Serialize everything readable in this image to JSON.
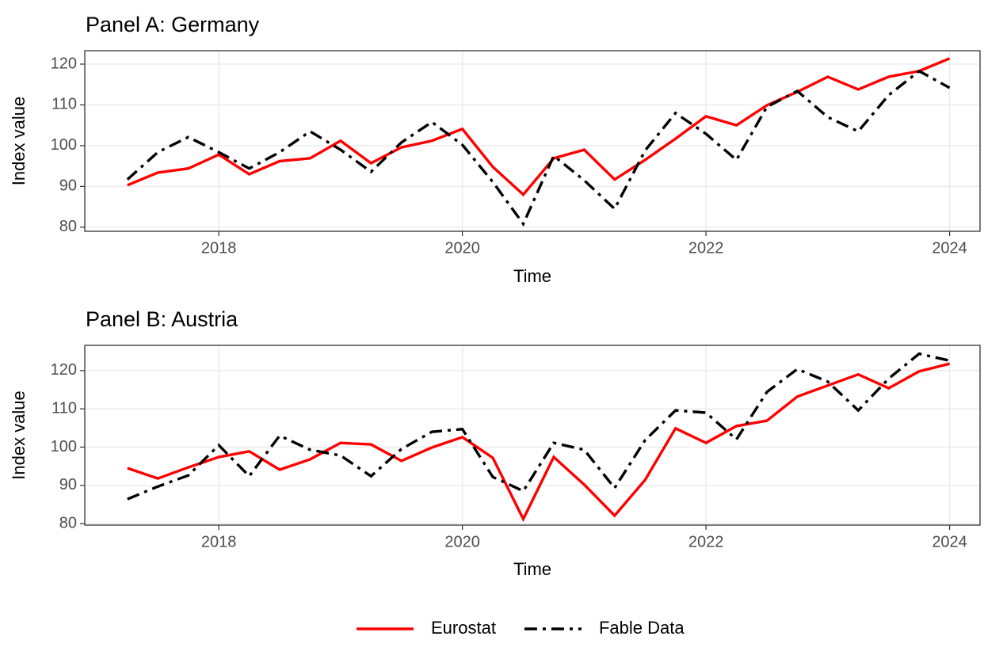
{
  "chart_data": [
    {
      "type": "line",
      "title": "Panel A: Germany",
      "x_label": "Time",
      "y_label": "Index value",
      "x": [
        2017.25,
        2017.5,
        2017.75,
        2018,
        2018.25,
        2018.5,
        2018.75,
        2019,
        2019.25,
        2019.5,
        2019.75,
        2020,
        2020.25,
        2020.5,
        2020.75,
        2021,
        2021.25,
        2021.5,
        2021.75,
        2022,
        2022.25,
        2022.5,
        2022.75,
        2023,
        2023.25,
        2023.5,
        2023.75,
        2024
      ],
      "series": [
        {
          "name": "Eurostat",
          "color": "#ff0000",
          "dash": "solid",
          "values": [
            90.3,
            93.4,
            94.4,
            97.8,
            93.0,
            96.2,
            96.9,
            101.2,
            95.7,
            99.6,
            101.2,
            104.1,
            94.8,
            88.0,
            96.9,
            99.0,
            91.7,
            96.5,
            101.7,
            107.2,
            105.0,
            109.9,
            113.2,
            116.9,
            113.8,
            116.9,
            118.3,
            121.4
          ]
        },
        {
          "name": "Fable Data",
          "color": "#000000",
          "dash": "dashdot",
          "values": [
            91.7,
            98.4,
            102.1,
            98.4,
            94.4,
            98.4,
            103.5,
            99.0,
            93.6,
            100.8,
            105.8,
            100.2,
            91.1,
            80.8,
            97.5,
            91.5,
            84.5,
            98.8,
            108.0,
            102.9,
            96.5,
            109.5,
            113.4,
            107.0,
            103.5,
            112.4,
            118.3,
            114.2
          ]
        }
      ],
      "xlim": [
        2016.9,
        2024.25
      ],
      "xticks": [
        2018,
        2020,
        2022,
        2024
      ],
      "ylim": [
        79.0,
        123.3
      ],
      "yticks": [
        80,
        90,
        100,
        110,
        120
      ],
      "grid": true
    },
    {
      "type": "line",
      "title": "Panel B: Austria",
      "x_label": "Time",
      "y_label": "Index value",
      "x": [
        2017.25,
        2017.5,
        2017.75,
        2018,
        2018.25,
        2018.5,
        2018.75,
        2019,
        2019.25,
        2019.5,
        2019.75,
        2020,
        2020.25,
        2020.5,
        2020.75,
        2021,
        2021.25,
        2021.5,
        2021.75,
        2022,
        2022.25,
        2022.5,
        2022.75,
        2023,
        2023.25,
        2023.5,
        2023.75,
        2024
      ],
      "series": [
        {
          "name": "Eurostat",
          "color": "#ff0000",
          "dash": "solid",
          "values": [
            94.5,
            91.8,
            94.7,
            97.4,
            98.9,
            94.1,
            96.8,
            101.1,
            100.7,
            96.4,
            99.9,
            102.6,
            97.2,
            81.2,
            97.4,
            90.2,
            82.1,
            91.4,
            104.9,
            101.1,
            105.5,
            106.9,
            113.2,
            116.1,
            119.0,
            115.4,
            119.8,
            121.8
          ]
        },
        {
          "name": "Fable Data",
          "color": "#000000",
          "dash": "dashdot",
          "values": [
            86.4,
            89.7,
            92.6,
            100.5,
            92.4,
            103.0,
            99.3,
            97.8,
            92.4,
            99.5,
            104.0,
            104.7,
            92.2,
            88.5,
            101.1,
            99.3,
            89.3,
            101.8,
            109.6,
            109.0,
            102.0,
            114.4,
            120.4,
            117.1,
            109.6,
            117.9,
            124.4,
            122.6
          ]
        }
      ],
      "xlim": [
        2016.9,
        2024.25
      ],
      "xticks": [
        2018,
        2020,
        2022,
        2024
      ],
      "ylim": [
        79.6,
        126.6
      ],
      "yticks": [
        80,
        90,
        100,
        110,
        120
      ],
      "grid": true
    }
  ]
}
